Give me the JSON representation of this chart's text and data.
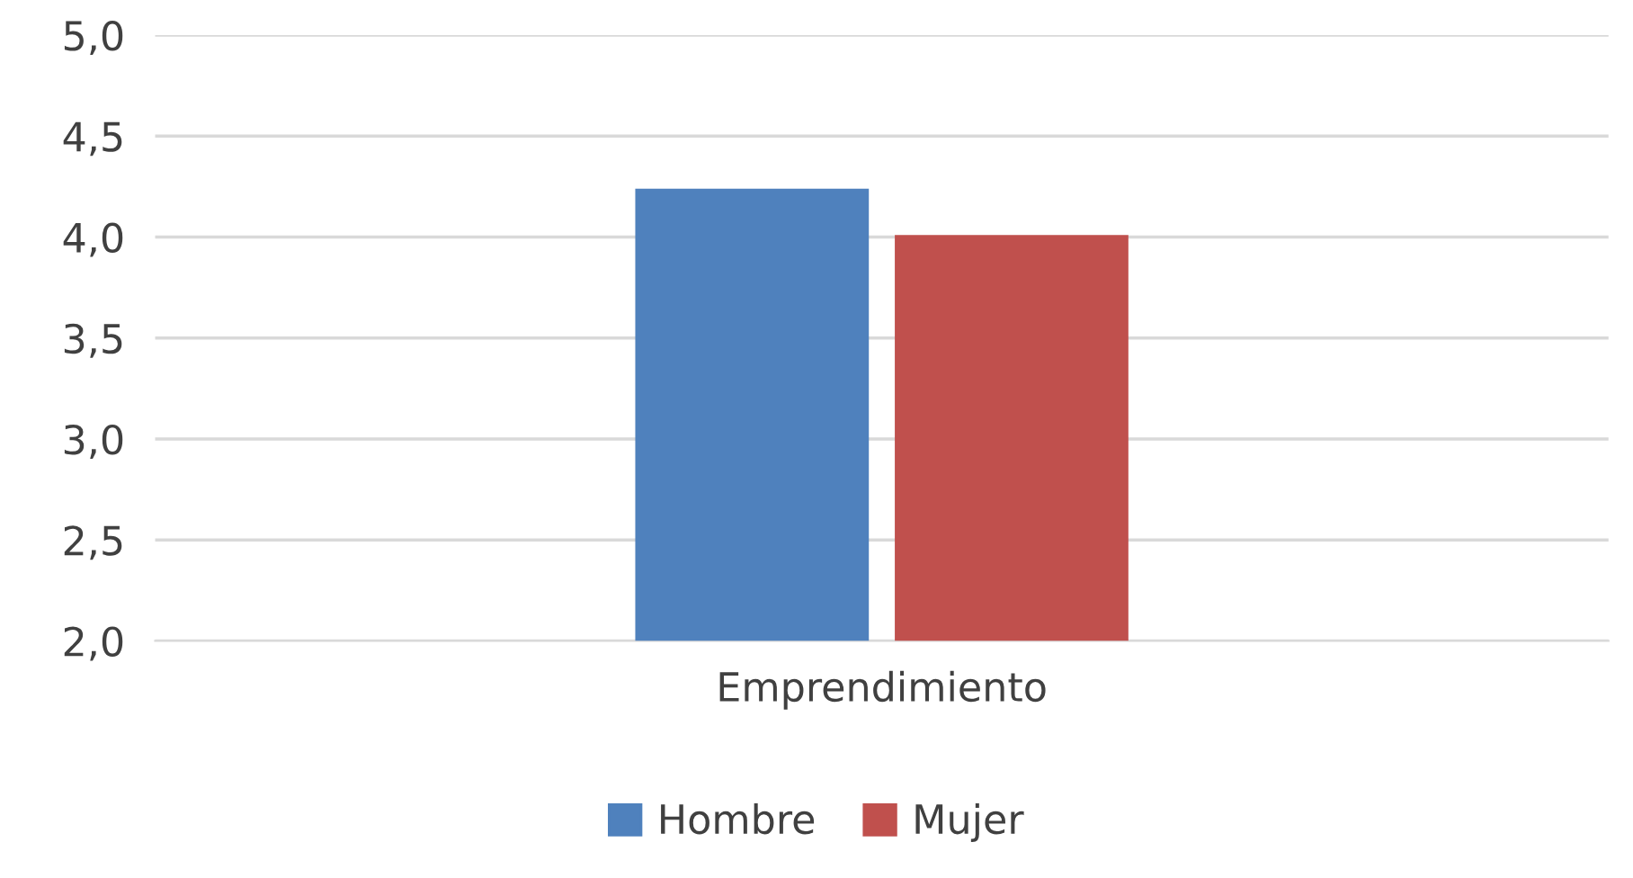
{
  "chart_data": {
    "type": "bar",
    "categories": [
      "Emprendimiento"
    ],
    "series": [
      {
        "name": "Hombre",
        "color": "#4f81bd",
        "values": [
          4.24
        ]
      },
      {
        "name": "Mujer",
        "color": "#c0504d",
        "values": [
          4.01
        ]
      }
    ],
    "ylim": [
      2,
      5
    ],
    "yticks": [
      {
        "value": 2,
        "label": "2,0"
      },
      {
        "value": 2.5,
        "label": "2,5"
      },
      {
        "value": 3,
        "label": "3,0"
      },
      {
        "value": 3.5,
        "label": "3,5"
      },
      {
        "value": 4,
        "label": "4,0"
      },
      {
        "value": 4.5,
        "label": "4,5"
      },
      {
        "value": 5,
        "label": "5,0"
      }
    ],
    "grid": "y",
    "legend": "bottom"
  }
}
